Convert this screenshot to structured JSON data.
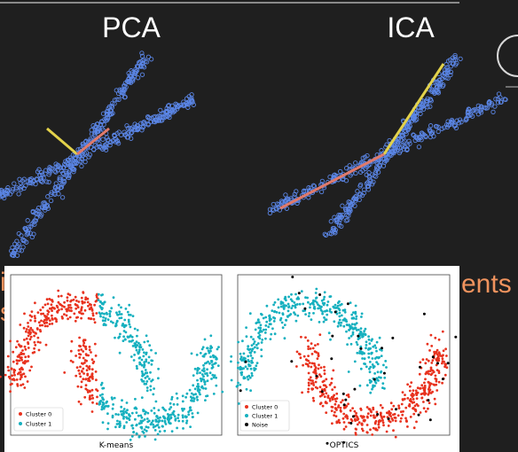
{
  "slide": {
    "background": "#1f1f1f",
    "text_fragments": [
      "ents",
      "i",
      "s"
    ],
    "text_color": "#f0935e"
  },
  "chart_data": [
    {
      "type": "scatter",
      "title": "PCA",
      "series": [
        {
          "color": "#5b86e6",
          "marker": "hollow-circle",
          "line_a": {
            "from": [
              -1.0,
              -1.0
            ],
            "to": [
              1.0,
              1.0
            ]
          },
          "line_b": {
            "from": [
              -1.0,
              -0.6
            ],
            "to": [
              1.6,
              0.4
            ]
          }
        }
      ],
      "components": [
        {
          "color": "#e3d24a",
          "from": [
            0.0,
            0.0
          ],
          "to": [
            -0.45,
            0.45
          ]
        },
        {
          "color": "#e07a6a",
          "from": [
            0.0,
            0.0
          ],
          "to": [
            0.5,
            0.35
          ]
        }
      ]
    },
    {
      "type": "scatter",
      "title": "ICA",
      "series": [
        {
          "color": "#5b86e6",
          "marker": "hollow-circle"
        }
      ],
      "components": [
        {
          "color": "#e3d24a",
          "from": [
            0.0,
            0.0
          ],
          "to": [
            0.9,
            1.45
          ]
        },
        {
          "color": "#e07a6a",
          "from": [
            0.0,
            0.0
          ],
          "to": [
            -1.5,
            -0.9
          ]
        }
      ]
    },
    {
      "type": "scatter",
      "title": "K-means",
      "series": [
        {
          "name": "Cluster 0",
          "color": "#e8321e"
        },
        {
          "name": "Cluster 1",
          "color": "#16b0bf"
        }
      ],
      "legend": "bottom-left"
    },
    {
      "type": "scatter",
      "title": "OPTICS",
      "series": [
        {
          "name": "Cluster 0",
          "color": "#e8321e"
        },
        {
          "name": "Cluster 1",
          "color": "#16b0bf"
        },
        {
          "name": "Noise",
          "color": "#000000"
        }
      ],
      "legend": "bottom-left"
    }
  ]
}
